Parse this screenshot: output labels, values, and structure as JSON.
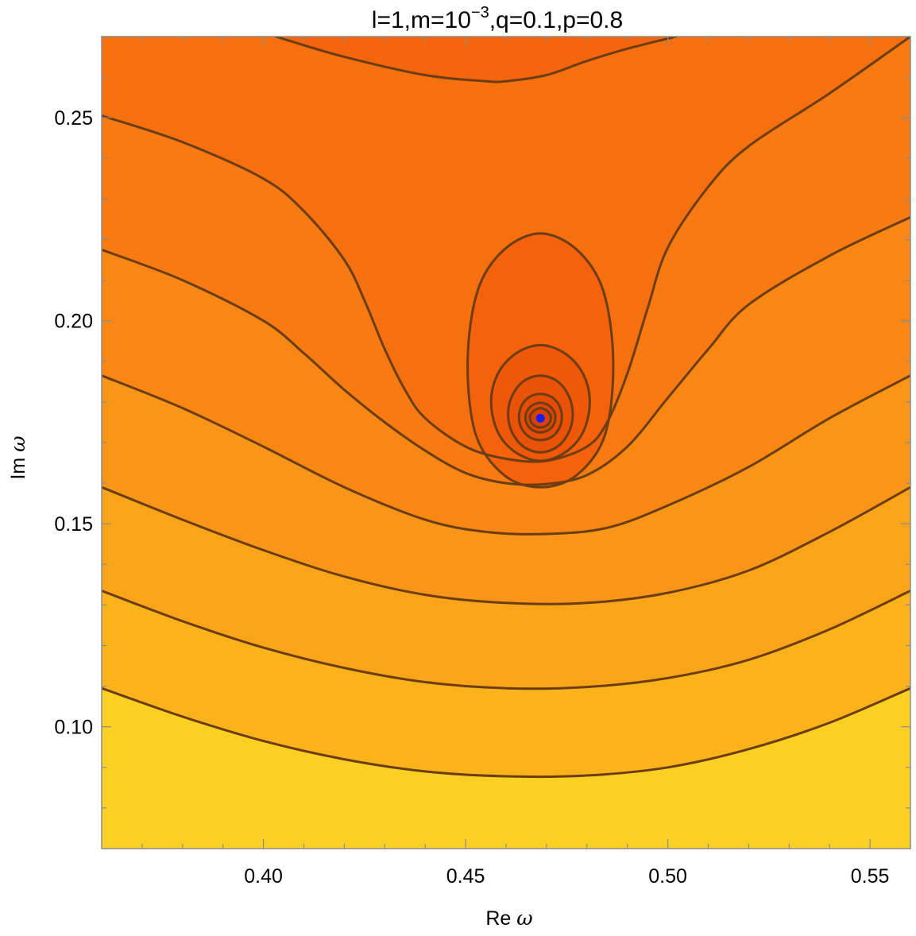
{
  "chart_data": {
    "type": "heatmap",
    "plot_kind": "contour",
    "title": {
      "prefix": "l=1,m=10",
      "superscript": "−3",
      "suffix": ",q=0.1,p=0.8"
    },
    "xlabel": {
      "text": "Re ",
      "symbol": "ω"
    },
    "ylabel": {
      "text": "Im ",
      "symbol": "ω"
    },
    "xlim": [
      0.36,
      0.56
    ],
    "ylim": [
      0.07,
      0.27
    ],
    "xticks": [
      {
        "value": 0.4,
        "label": "0.40"
      },
      {
        "value": 0.45,
        "label": "0.45"
      },
      {
        "value": 0.5,
        "label": "0.50"
      },
      {
        "value": 0.55,
        "label": "0.55"
      }
    ],
    "yticks": [
      {
        "value": 0.1,
        "label": "0.10"
      },
      {
        "value": 0.15,
        "label": "0.15"
      },
      {
        "value": 0.2,
        "label": "0.20"
      },
      {
        "value": 0.25,
        "label": "0.25"
      }
    ],
    "grid": false,
    "colormap": "yellow-to-orange (high = dark orange)",
    "background_fill": "#fcd022",
    "contour_line_color": "#6b3d10",
    "marker": {
      "x": 0.4685,
      "y": 0.176,
      "color": "#1a1aff"
    },
    "contours": [
      {
        "level": 1,
        "fill": "#fbb31c",
        "points": [
          [
            0.36,
            0.1095
          ],
          [
            0.38,
            0.1025
          ],
          [
            0.4,
            0.0965
          ],
          [
            0.42,
            0.092
          ],
          [
            0.44,
            0.089
          ],
          [
            0.46,
            0.0878
          ],
          [
            0.48,
            0.088
          ],
          [
            0.5,
            0.09
          ],
          [
            0.52,
            0.0945
          ],
          [
            0.54,
            0.101
          ],
          [
            0.56,
            0.1095
          ]
        ]
      },
      {
        "level": 2,
        "fill": "#faa41a",
        "points": [
          [
            0.36,
            0.1335
          ],
          [
            0.38,
            0.126
          ],
          [
            0.4,
            0.1195
          ],
          [
            0.42,
            0.1145
          ],
          [
            0.44,
            0.111
          ],
          [
            0.46,
            0.1095
          ],
          [
            0.48,
            0.1098
          ],
          [
            0.5,
            0.112
          ],
          [
            0.52,
            0.1165
          ],
          [
            0.54,
            0.124
          ],
          [
            0.56,
            0.1335
          ]
        ]
      },
      {
        "level": 3,
        "fill": "#f99518",
        "points": [
          [
            0.36,
            0.159
          ],
          [
            0.38,
            0.151
          ],
          [
            0.4,
            0.1435
          ],
          [
            0.42,
            0.137
          ],
          [
            0.44,
            0.1325
          ],
          [
            0.46,
            0.1305
          ],
          [
            0.48,
            0.1305
          ],
          [
            0.5,
            0.133
          ],
          [
            0.52,
            0.1385
          ],
          [
            0.54,
            0.148
          ],
          [
            0.56,
            0.159
          ]
        ]
      },
      {
        "level": 4,
        "fill": "#f88714",
        "points": [
          [
            0.36,
            0.1865
          ],
          [
            0.38,
            0.1785
          ],
          [
            0.4,
            0.169
          ],
          [
            0.42,
            0.159
          ],
          [
            0.44,
            0.151
          ],
          [
            0.455,
            0.148
          ],
          [
            0.47,
            0.1475
          ],
          [
            0.485,
            0.149
          ],
          [
            0.5,
            0.1545
          ],
          [
            0.52,
            0.164
          ],
          [
            0.54,
            0.176
          ],
          [
            0.56,
            0.1865
          ]
        ]
      },
      {
        "level": 5,
        "fill": "#f77a12",
        "points": [
          [
            0.36,
            0.2175
          ],
          [
            0.38,
            0.21
          ],
          [
            0.4,
            0.2
          ],
          [
            0.41,
            0.192
          ],
          [
            0.42,
            0.183
          ],
          [
            0.43,
            0.175
          ],
          [
            0.44,
            0.168
          ],
          [
            0.45,
            0.1625
          ],
          [
            0.46,
            0.16
          ],
          [
            0.47,
            0.1598
          ],
          [
            0.48,
            0.162
          ],
          [
            0.49,
            0.169
          ],
          [
            0.5,
            0.181
          ],
          [
            0.51,
            0.193
          ],
          [
            0.52,
            0.204
          ],
          [
            0.54,
            0.216
          ],
          [
            0.56,
            0.2255
          ]
        ]
      },
      {
        "level": 6,
        "fill": "#f6700f",
        "points": [
          [
            0.36,
            0.2505
          ],
          [
            0.38,
            0.244
          ],
          [
            0.4,
            0.235
          ],
          [
            0.41,
            0.227
          ],
          [
            0.42,
            0.215
          ],
          [
            0.425,
            0.205
          ],
          [
            0.43,
            0.193
          ],
          [
            0.435,
            0.183
          ],
          [
            0.44,
            0.176
          ],
          [
            0.45,
            0.169
          ],
          [
            0.46,
            0.166
          ],
          [
            0.47,
            0.1655
          ],
          [
            0.48,
            0.169
          ],
          [
            0.485,
            0.175
          ],
          [
            0.49,
            0.187
          ],
          [
            0.495,
            0.203
          ],
          [
            0.5,
            0.218
          ],
          [
            0.51,
            0.233
          ],
          [
            0.52,
            0.243
          ],
          [
            0.54,
            0.256
          ],
          [
            0.56,
            0.27
          ]
        ]
      },
      {
        "level": 7,
        "fill": "#f5650d",
        "points": [
          [
            0.403,
            0.27
          ],
          [
            0.42,
            0.265
          ],
          [
            0.44,
            0.2605
          ],
          [
            0.455,
            0.259
          ],
          [
            0.46,
            0.259
          ],
          [
            0.47,
            0.2605
          ],
          [
            0.48,
            0.264
          ],
          [
            0.49,
            0.267
          ],
          [
            0.502,
            0.27
          ]
        ]
      },
      {
        "level": 8,
        "fill": "#f5620c",
        "closed": true,
        "points": [
          [
            0.4685,
            0.2215
          ],
          [
            0.4775,
            0.2175
          ],
          [
            0.484,
            0.2075
          ],
          [
            0.4865,
            0.19
          ],
          [
            0.4845,
            0.172
          ],
          [
            0.4775,
            0.162
          ],
          [
            0.4685,
            0.159
          ],
          [
            0.4595,
            0.162
          ],
          [
            0.4525,
            0.172
          ],
          [
            0.4505,
            0.19
          ],
          [
            0.453,
            0.2075
          ],
          [
            0.4595,
            0.2175
          ]
        ]
      },
      {
        "level": 9,
        "fill": "#ef5808",
        "closed": true,
        "points": [
          [
            0.4685,
            0.194
          ],
          [
            0.4745,
            0.192
          ],
          [
            0.479,
            0.187
          ],
          [
            0.4807,
            0.18
          ],
          [
            0.479,
            0.1725
          ],
          [
            0.4745,
            0.1675
          ],
          [
            0.4685,
            0.1655
          ],
          [
            0.4625,
            0.1675
          ],
          [
            0.458,
            0.1725
          ],
          [
            0.4563,
            0.18
          ],
          [
            0.458,
            0.187
          ],
          [
            0.4625,
            0.192
          ]
        ]
      },
      {
        "level": 10,
        "fill": "#ea5207",
        "closed": true,
        "points": [
          [
            0.4685,
            0.1865
          ],
          [
            0.4727,
            0.1851
          ],
          [
            0.4755,
            0.1815
          ],
          [
            0.4765,
            0.177
          ],
          [
            0.4755,
            0.1725
          ],
          [
            0.4727,
            0.169
          ],
          [
            0.4685,
            0.1676
          ],
          [
            0.4643,
            0.169
          ],
          [
            0.4615,
            0.1725
          ],
          [
            0.4605,
            0.177
          ],
          [
            0.4615,
            0.1815
          ],
          [
            0.4643,
            0.1851
          ]
        ]
      },
      {
        "level": 11,
        "fill": "#e54c06",
        "closed": true,
        "points": [
          [
            0.4685,
            0.182
          ],
          [
            0.4713,
            0.1812
          ],
          [
            0.4732,
            0.179
          ],
          [
            0.4738,
            0.1763
          ],
          [
            0.4732,
            0.1736
          ],
          [
            0.4713,
            0.1714
          ],
          [
            0.4685,
            0.1706
          ],
          [
            0.4657,
            0.1714
          ],
          [
            0.4638,
            0.1736
          ],
          [
            0.4632,
            0.1763
          ],
          [
            0.4638,
            0.179
          ],
          [
            0.4657,
            0.1812
          ]
        ]
      },
      {
        "level": 12,
        "fill": "#df4605",
        "closed": true,
        "points": [
          [
            0.4685,
            0.1798
          ],
          [
            0.4705,
            0.1792
          ],
          [
            0.4718,
            0.1778
          ],
          [
            0.4722,
            0.1762
          ],
          [
            0.4718,
            0.1745
          ],
          [
            0.4705,
            0.1731
          ],
          [
            0.4685,
            0.1725
          ],
          [
            0.4665,
            0.1731
          ],
          [
            0.4652,
            0.1745
          ],
          [
            0.4648,
            0.1762
          ],
          [
            0.4652,
            0.1778
          ],
          [
            0.4665,
            0.1792
          ]
        ]
      },
      {
        "level": 13,
        "fill": "#d94004",
        "closed": true,
        "points": [
          [
            0.4685,
            0.1785
          ],
          [
            0.4699,
            0.178
          ],
          [
            0.4708,
            0.1771
          ],
          [
            0.4711,
            0.1761
          ],
          [
            0.4708,
            0.175
          ],
          [
            0.4699,
            0.1741
          ],
          [
            0.4685,
            0.1737
          ],
          [
            0.4671,
            0.1741
          ],
          [
            0.4662,
            0.175
          ],
          [
            0.4659,
            0.1761
          ],
          [
            0.4662,
            0.1771
          ],
          [
            0.4671,
            0.178
          ]
        ]
      }
    ]
  }
}
